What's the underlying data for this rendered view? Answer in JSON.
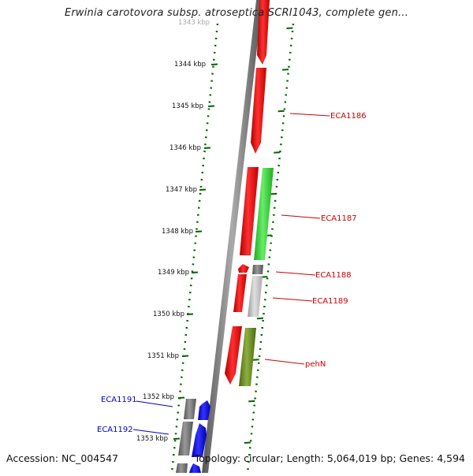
{
  "title": "Erwinia carotovora subsp. atroseptica SCRI1043, complete gen...",
  "footer": {
    "accession": "Accession: NC_004547",
    "topology": "Topology: circular; Length: 5,064,019 bp; Genes: 4,594"
  },
  "scale_labels": [
    "1343 kbp",
    "1344 kbp",
    "1345 kbp",
    "1346 kbp",
    "1347 kbp",
    "1348 kbp",
    "1349 kbp",
    "1350 kbp",
    "1351 kbp",
    "1352 kbp",
    "1353 kbp"
  ],
  "gene_labels": [
    {
      "text": "ECA1186",
      "color": "#cc0000"
    },
    {
      "text": "ECA1187",
      "color": "#cc0000"
    },
    {
      "text": "ECA1188",
      "color": "#cc0000"
    },
    {
      "text": "ECA1189",
      "color": "#cc0000"
    },
    {
      "text": "pehN",
      "color": "#cc0000"
    },
    {
      "text": "ECA1191",
      "color": "#0000cc"
    },
    {
      "text": "ECA1192",
      "color": "#0000cc"
    }
  ],
  "colors": {
    "gene_red": "#ff0000",
    "gene_green": "#33cc33",
    "gene_gray": "#999999",
    "gene_lightgray": "#cccccc",
    "gene_olive": "#6b8e23",
    "gene_blue": "#0000ff",
    "gene_darkgray": "#666666",
    "axis": "#777777",
    "tick": "#006600"
  }
}
